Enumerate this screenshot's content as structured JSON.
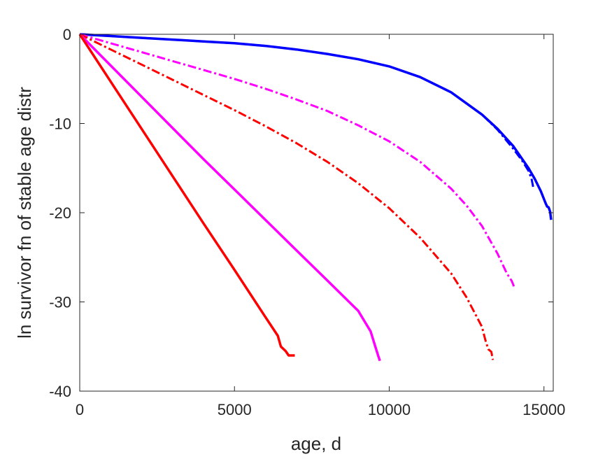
{
  "chart_data": {
    "type": "line",
    "title": "",
    "xlabel": "age, d",
    "ylabel": "ln survivor fn of stable age distr",
    "xlim": [
      0,
      15300
    ],
    "ylim": [
      -40,
      0
    ],
    "xticks": [
      0,
      5000,
      10000,
      15000
    ],
    "yticks": [
      0,
      -10,
      -20,
      -30,
      -40
    ],
    "xtick_labels": [
      "0",
      "5000",
      "10000",
      "15000"
    ],
    "ytick_labels": [
      "0",
      "-10",
      "-20",
      "-30",
      "-40"
    ],
    "grid": false,
    "legend": "none",
    "series": [
      {
        "color": "#0000ff",
        "style": "solid",
        "width": 3.5,
        "x": [
          0,
          1000,
          2000,
          3000,
          4000,
          5000,
          6000,
          7000,
          8000,
          9000,
          10000,
          11000,
          12000,
          13000,
          13500,
          14000,
          14500,
          14700,
          14900,
          15050,
          15100,
          15150,
          15200,
          15230
        ],
        "y": [
          0,
          -0.2,
          -0.4,
          -0.6,
          -0.8,
          -1.0,
          -1.3,
          -1.7,
          -2.2,
          -2.8,
          -3.6,
          -4.8,
          -6.5,
          -9.0,
          -10.6,
          -12.5,
          -15.0,
          -16.2,
          -17.6,
          -18.9,
          -19.3,
          -19.4,
          -19.9,
          -20.8
        ]
      },
      {
        "color": "#0000ff",
        "style": "dashdot",
        "width": 3,
        "x": [
          0,
          1000,
          2000,
          3000,
          4000,
          5000,
          6000,
          7000,
          8000,
          9000,
          10000,
          11000,
          12000,
          13000,
          13500,
          14000,
          14300,
          14500,
          14600,
          14650
        ],
        "y": [
          0,
          -0.2,
          -0.4,
          -0.6,
          -0.8,
          -1.0,
          -1.3,
          -1.7,
          -2.2,
          -2.8,
          -3.6,
          -4.8,
          -6.5,
          -9.0,
          -10.7,
          -12.8,
          -14.2,
          -15.3,
          -16.2,
          -17.1
        ]
      },
      {
        "color": "#ff00ff",
        "style": "dashdot",
        "width": 3,
        "x": [
          0,
          1000,
          2000,
          3000,
          4000,
          5000,
          6000,
          7000,
          8000,
          9000,
          10000,
          11000,
          12000,
          12500,
          13000,
          13500,
          13800,
          13950,
          14000,
          14050
        ],
        "y": [
          0,
          -1.0,
          -2.0,
          -3.0,
          -4.0,
          -5.0,
          -6.1,
          -7.3,
          -8.6,
          -10.2,
          -12.0,
          -14.3,
          -17.3,
          -19.2,
          -21.5,
          -24.6,
          -26.8,
          -27.6,
          -28.0,
          -28.5
        ]
      },
      {
        "color": "#ff0000",
        "style": "dashdot",
        "width": 3,
        "x": [
          0,
          1000,
          2000,
          3000,
          4000,
          5000,
          6000,
          7000,
          8000,
          9000,
          10000,
          11000,
          12000,
          12500,
          13000,
          13100,
          13200,
          13300,
          13350
        ],
        "y": [
          0,
          -1.7,
          -3.4,
          -5.1,
          -6.8,
          -8.5,
          -10.3,
          -12.2,
          -14.3,
          -16.7,
          -19.5,
          -22.8,
          -26.8,
          -29.5,
          -32.8,
          -34.2,
          -35.3,
          -35.6,
          -36.5
        ]
      },
      {
        "color": "#ff00ff",
        "style": "solid",
        "width": 3.5,
        "x": [
          0,
          1000,
          2000,
          3000,
          4000,
          5000,
          6000,
          7000,
          8000,
          9000,
          9400,
          9550,
          9650,
          9700
        ],
        "y": [
          0,
          -3.5,
          -7.0,
          -10.5,
          -14.0,
          -17.4,
          -20.8,
          -24.2,
          -27.6,
          -31.0,
          -33.3,
          -35.0,
          -36.1,
          -36.6
        ]
      },
      {
        "color": "#ff0000",
        "style": "solid",
        "width": 3.5,
        "x": [
          0,
          1000,
          2000,
          3000,
          4000,
          5000,
          6000,
          6400,
          6500,
          6650,
          6750,
          6950
        ],
        "y": [
          0,
          -5.3,
          -10.6,
          -15.9,
          -21.2,
          -26.4,
          -31.7,
          -33.8,
          -35.0,
          -35.5,
          -36.0,
          -36.0
        ]
      }
    ]
  }
}
